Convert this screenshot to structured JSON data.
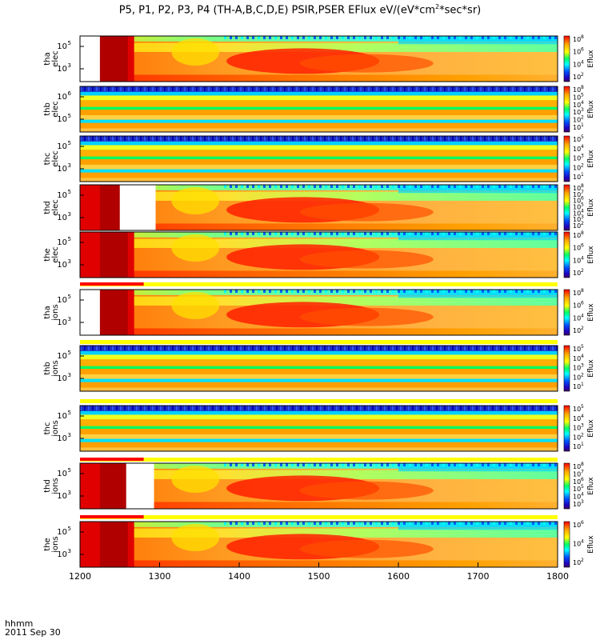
{
  "chart_data": {
    "type": "heatmap",
    "title_parts": [
      "P5, P1, P2, P3, P4 (TH-A,B,C,D,E) PSIR,PSER EFlux eV/(eV*cm",
      "2",
      "*sec*sr)"
    ],
    "time_label": "hhmm",
    "date_label": "2011 Sep 30",
    "x_ticks": [
      "1200",
      "1300",
      "1400",
      "1500",
      "1600",
      "1700",
      "1800"
    ],
    "xlim": [
      1200,
      1800
    ],
    "colorbar_label": "Eflux",
    "panels": [
      {
        "probe": "tha",
        "species": "elec",
        "yticks": [
          "10^5",
          "10^3"
        ],
        "cbar_ticks": [
          "10^8",
          "10^6",
          "10^4",
          "10^2"
        ],
        "style": "active",
        "gap": [
          1200,
          1225
        ]
      },
      {
        "probe": "thb",
        "species": "elec",
        "yticks": [
          "10^6",
          "10^5"
        ],
        "cbar_ticks": [
          "10^8",
          "10^5",
          "10^4",
          "10^3",
          "10^2",
          "10^1"
        ],
        "style": "bands"
      },
      {
        "probe": "thc",
        "species": "elec",
        "yticks": [
          "10^5",
          "10^3"
        ],
        "cbar_ticks": [
          "10^5",
          "10^4",
          "10^3",
          "10^2",
          "10^1"
        ],
        "style": "bands"
      },
      {
        "probe": "thd",
        "species": "elec",
        "yticks": [
          "10^5",
          "10^3"
        ],
        "cbar_ticks": [
          "10^8",
          "10^7",
          "10^6",
          "10^5",
          "10^4",
          "10^3",
          "10^2"
        ],
        "style": "active",
        "gap": [
          1250,
          1295
        ]
      },
      {
        "probe": "the",
        "species": "elec",
        "yticks": [
          "10^5",
          "10^3"
        ],
        "cbar_ticks": [
          "10^8",
          "10^6",
          "10^4",
          "10^2"
        ],
        "style": "active"
      },
      {
        "probe": "tha",
        "species": "ions",
        "yticks": [
          "10^5",
          "10^3"
        ],
        "cbar_ticks": [
          "10^8",
          "10^6",
          "10^4",
          "10^2"
        ],
        "style": "active",
        "gap": [
          1200,
          1225
        ]
      },
      {
        "probe": "thb",
        "species": "ions",
        "yticks": [
          "10^5",
          "10^3"
        ],
        "cbar_ticks": [
          "10^5",
          "10^4",
          "10^3",
          "10^2",
          "10^1"
        ],
        "style": "bands"
      },
      {
        "probe": "thc",
        "species": "ions",
        "yticks": [
          "10^5",
          "10^3"
        ],
        "cbar_ticks": [
          "10^5",
          "10^4",
          "10^3",
          "10^2",
          "10^1"
        ],
        "style": "bands"
      },
      {
        "probe": "thd",
        "species": "ions",
        "yticks": [
          "10^5",
          "10^3"
        ],
        "cbar_ticks": [
          "10^8",
          "10^7",
          "10^6",
          "10^5",
          "10^4",
          "10^3"
        ],
        "style": "active",
        "gap": [
          1258,
          1293
        ]
      },
      {
        "probe": "the",
        "species": "ions",
        "yticks": [
          "10^5",
          "10^3"
        ],
        "cbar_ticks": [
          "10^6",
          "10^4",
          "10^2"
        ],
        "style": "active"
      }
    ]
  }
}
